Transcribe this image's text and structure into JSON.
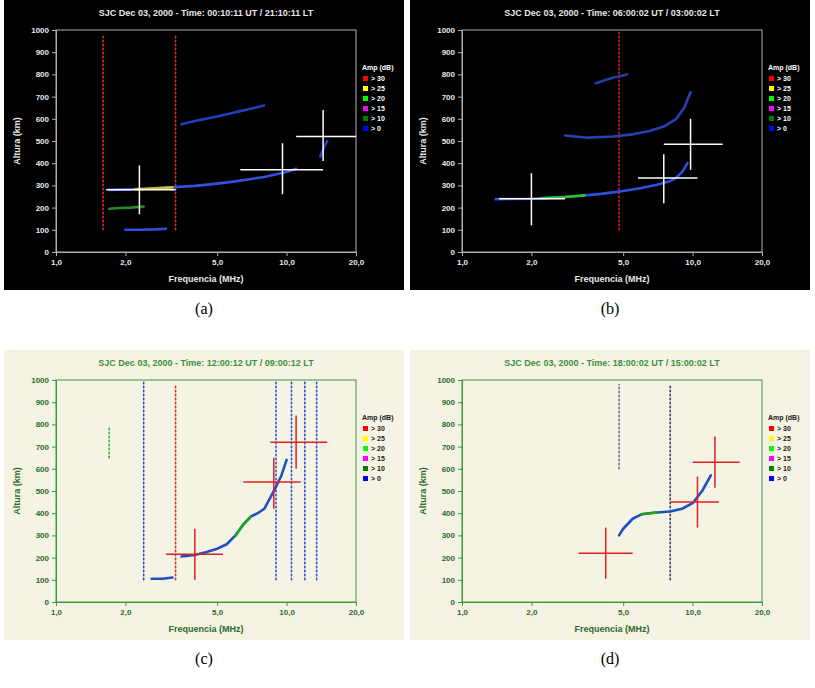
{
  "chart_data": [
    {
      "type": "line",
      "caption": "(a)",
      "title": "SJC Dec 03, 2000 - Time: 00:10:11 UT / 21:10:11 LT",
      "x_label": "Frequencia (MHz)",
      "y_label": "Altura (km)",
      "log": "x",
      "xlim": [
        1,
        20
      ],
      "ylim": [
        0,
        1000
      ],
      "xticks": [
        {
          "value": 1,
          "label": "1,0"
        },
        {
          "value": 2,
          "label": "2,0"
        },
        {
          "value": 5,
          "label": "5,0"
        },
        {
          "value": 10,
          "label": "10,0"
        },
        {
          "value": 20,
          "label": "20,0"
        }
      ],
      "yticks": [
        0,
        100,
        200,
        300,
        400,
        500,
        600,
        700,
        800,
        900,
        1000
      ],
      "amplitude_scale": {
        "title": "Amp (dB)",
        "labels": [
          "> 30",
          "> 25",
          "> 20",
          "> 15",
          "> 10",
          "> 0"
        ],
        "colors": [
          "#ff0000",
          "#ffff00",
          "#00ff00",
          "#ff00ff",
          "#008000",
          "#0000ff"
        ]
      },
      "series": [
        {
          "type": "line",
          "line_style": "dotted",
          "color": "#e03020",
          "x": [
            1.6,
            1.6
          ],
          "values": [
            100,
            980
          ]
        },
        {
          "type": "line",
          "line_style": "dotted",
          "color": "#e03020",
          "x": [
            3.3,
            3.3
          ],
          "values": [
            100,
            980
          ]
        },
        {
          "type": "line",
          "line_style": "solid",
          "color": "#3050e0",
          "x": [
            2.0,
            2.3,
            2.7,
            3.0
          ],
          "values": [
            100,
            100,
            102,
            105
          ]
        },
        {
          "type": "line",
          "line_style": "solid",
          "color": "#2a8a2a",
          "x": [
            1.7,
            1.9,
            2.1,
            2.4
          ],
          "values": [
            195,
            198,
            200,
            205
          ]
        },
        {
          "type": "line",
          "line_style": "solid",
          "color": "#3050e0",
          "x": [
            1.7,
            2.0,
            2.5,
            3.0,
            4.0,
            5.0,
            6.0,
            8.0,
            10.0,
            11.0
          ],
          "values": [
            280,
            282,
            285,
            290,
            298,
            308,
            318,
            338,
            360,
            375
          ]
        },
        {
          "type": "line",
          "line_style": "solid",
          "color": "#d4c020",
          "x": [
            2.2,
            2.6,
            3.2
          ],
          "values": [
            283,
            286,
            291
          ]
        },
        {
          "type": "line",
          "line_style": "solid",
          "color": "#2040c0",
          "x": [
            3.5,
            4.0,
            5.0,
            6.0,
            7.0,
            8.0
          ],
          "values": [
            575,
            590,
            610,
            630,
            645,
            660
          ]
        },
        {
          "type": "line",
          "line_style": "solid",
          "color": "#2040c0",
          "x": [
            14.0,
            14.5,
            15.0
          ],
          "values": [
            430,
            470,
            500
          ]
        }
      ],
      "crosses": {
        "color": "#ffffff",
        "x": [
          2.3,
          9.6,
          14.4
        ],
        "y": [
          280,
          370,
          520
        ],
        "x_low": [
          1.65,
          6.3,
          11.0
        ],
        "x_high": [
          3.3,
          14.4,
          20.0
        ],
        "y_low": [
          170,
          260,
          410
        ],
        "y_high": [
          390,
          490,
          640
        ]
      }
    },
    {
      "type": "line",
      "caption": "(b)",
      "title": "SJC Dec 03, 2000 - Time: 06:00:02 UT / 03:00:02 LT",
      "x_label": "Frequencia (MHz)",
      "y_label": "Altura (km)",
      "log": "x",
      "xlim": [
        1,
        20
      ],
      "ylim": [
        0,
        1000
      ],
      "xticks": [
        {
          "value": 1,
          "label": "1,0"
        },
        {
          "value": 2,
          "label": "2,0"
        },
        {
          "value": 5,
          "label": "5,0"
        },
        {
          "value": 10,
          "label": "10,0"
        },
        {
          "value": 20,
          "label": "20,0"
        }
      ],
      "yticks": [
        0,
        100,
        200,
        300,
        400,
        500,
        600,
        700,
        800,
        900,
        1000
      ],
      "amplitude_scale": {
        "title": "Amp (dB)",
        "labels": [
          "> 30",
          "> 25",
          "> 20",
          "> 15",
          "> 10",
          "> 0"
        ],
        "colors": [
          "#ff0000",
          "#ffff00",
          "#00ff00",
          "#ff00ff",
          "#008000",
          "#0000ff"
        ]
      },
      "series": [
        {
          "type": "line",
          "line_style": "dotted",
          "color": "#e02020",
          "x": [
            4.8,
            4.8
          ],
          "values": [
            100,
            990
          ]
        },
        {
          "type": "line",
          "line_style": "solid",
          "color": "#3050e0",
          "x": [
            1.4,
            2.0,
            3.0,
            4.0,
            5.0,
            6.0,
            7.0,
            8.0,
            8.5,
            9.0,
            9.5
          ],
          "values": [
            238,
            240,
            250,
            262,
            275,
            288,
            303,
            320,
            335,
            360,
            400
          ]
        },
        {
          "type": "line",
          "line_style": "solid",
          "color": "#30c030",
          "x": [
            2.2,
            2.8,
            3.4
          ],
          "values": [
            242,
            248,
            255
          ]
        },
        {
          "type": "line",
          "line_style": "solid",
          "color": "#2a40b0",
          "x": [
            2.8,
            3.5,
            4.5,
            5.5,
            6.5,
            7.5,
            8.5,
            9.2,
            9.8
          ],
          "values": [
            525,
            515,
            520,
            530,
            545,
            565,
            600,
            650,
            720
          ]
        },
        {
          "type": "line",
          "line_style": "solid",
          "color": "#2040a0",
          "x": [
            3.8,
            4.5,
            5.2
          ],
          "values": [
            760,
            785,
            800
          ]
        }
      ],
      "crosses": {
        "color": "#ffffff",
        "x": [
          2.0,
          7.5,
          9.8
        ],
        "y": [
          240,
          333,
          485
        ],
        "x_low": [
          1.45,
          5.8,
          7.5
        ],
        "x_high": [
          2.8,
          10.5,
          13.5
        ],
        "y_low": [
          120,
          220,
          370
        ],
        "y_high": [
          355,
          440,
          600
        ]
      }
    },
    {
      "type": "line",
      "caption": "(c)",
      "title": "SJC Dec 03, 2000 - Time: 12:00:12 UT / 09:00:12 LT",
      "x_label": "Frequencia (MHz)",
      "y_label": "Altura (km)",
      "log": "x",
      "xlim": [
        1,
        20
      ],
      "ylim": [
        0,
        1000
      ],
      "xticks": [
        {
          "value": 1,
          "label": "1,0"
        },
        {
          "value": 2,
          "label": "2,0"
        },
        {
          "value": 5,
          "label": "5,0"
        },
        {
          "value": 10,
          "label": "10,0"
        },
        {
          "value": 20,
          "label": "20,0"
        }
      ],
      "yticks": [
        0,
        100,
        200,
        300,
        400,
        500,
        600,
        700,
        800,
        900,
        1000
      ],
      "amplitude_scale": {
        "title": "Amp (dB)",
        "labels": [
          "> 30",
          "> 25",
          "> 20",
          "> 15",
          "> 10",
          "> 0"
        ],
        "colors": [
          "#ff0000",
          "#ffff00",
          "#00ff00",
          "#ff00ff",
          "#008000",
          "#0000ff"
        ]
      },
      "series": [
        {
          "type": "line",
          "line_style": "dotted",
          "color": "#20c020",
          "x": [
            1.7,
            1.7
          ],
          "values": [
            650,
            790
          ]
        },
        {
          "type": "line",
          "line_style": "dotted",
          "color": "#3040c0",
          "x": [
            2.4,
            2.4
          ],
          "values": [
            100,
            1000
          ]
        },
        {
          "type": "line",
          "line_style": "dotted",
          "color": "#d03020",
          "x": [
            3.3,
            3.3
          ],
          "values": [
            100,
            980
          ]
        },
        {
          "type": "line",
          "line_style": "dotted",
          "color": "#3050d0",
          "x": [
            9.0,
            9.0
          ],
          "values": [
            100,
            1000
          ]
        },
        {
          "type": "line",
          "line_style": "dotted",
          "color": "#3050d0",
          "x": [
            10.5,
            10.5
          ],
          "values": [
            100,
            1000
          ]
        },
        {
          "type": "line",
          "line_style": "dotted",
          "color": "#3050d0",
          "x": [
            12.0,
            12.0
          ],
          "values": [
            100,
            1000
          ]
        },
        {
          "type": "line",
          "line_style": "dotted",
          "color": "#3050d0",
          "x": [
            13.5,
            13.5
          ],
          "values": [
            100,
            1000
          ]
        },
        {
          "type": "line",
          "line_style": "solid",
          "color": "#2050c0",
          "x": [
            2.6,
            2.9,
            3.2
          ],
          "values": [
            105,
            105,
            110
          ]
        },
        {
          "type": "line",
          "line_style": "solid",
          "color": "#2050c0",
          "x": [
            3.5,
            4.0,
            4.5,
            5.0,
            5.5,
            6.0,
            6.5,
            7.0,
            7.5,
            8.0,
            8.5,
            9.0,
            9.5,
            10.0
          ],
          "values": [
            205,
            212,
            225,
            240,
            260,
            300,
            350,
            385,
            400,
            420,
            470,
            520,
            570,
            640
          ]
        },
        {
          "type": "line",
          "line_style": "solid",
          "color": "#20a020",
          "x": [
            6.0,
            6.5,
            7.0
          ],
          "values": [
            300,
            350,
            385
          ]
        }
      ],
      "crosses": {
        "color": "#e02020",
        "x": [
          4.0,
          8.8,
          11.0
        ],
        "y": [
          215,
          540,
          720
        ],
        "x_low": [
          3.0,
          6.5,
          8.5
        ],
        "x_high": [
          5.3,
          11.5,
          15.0
        ],
        "y_low": [
          100,
          420,
          600
        ],
        "y_high": [
          330,
          650,
          840
        ]
      }
    },
    {
      "type": "line",
      "caption": "(d)",
      "title": "SJC Dec 03, 2000 - Time: 18:00:02 UT / 15:00:02 LT",
      "x_label": "Frequencia (MHz)",
      "y_label": "Altura (km)",
      "log": "x",
      "xlim": [
        1,
        20
      ],
      "ylim": [
        0,
        1000
      ],
      "xticks": [
        {
          "value": 1,
          "label": "1,0"
        },
        {
          "value": 2,
          "label": "2,0"
        },
        {
          "value": 5,
          "label": "5,0"
        },
        {
          "value": 10,
          "label": "10,0"
        },
        {
          "value": 20,
          "label": "20,0"
        }
      ],
      "yticks": [
        0,
        100,
        200,
        300,
        400,
        500,
        600,
        700,
        800,
        900,
        1000
      ],
      "amplitude_scale": {
        "title": "Amp (dB)",
        "labels": [
          "> 30",
          "> 25",
          "> 20",
          "> 15",
          "> 10",
          "> 0"
        ],
        "colors": [
          "#ff0000",
          "#ffff00",
          "#00ff00",
          "#ff00ff",
          "#008000",
          "#0000ff"
        ]
      },
      "series": [
        {
          "type": "line",
          "line_style": "dotted",
          "color": "#304070",
          "x": [
            8.0,
            8.0
          ],
          "values": [
            100,
            980
          ]
        },
        {
          "type": "line",
          "line_style": "dotted",
          "color": "#6070a0",
          "x": [
            4.8,
            4.8
          ],
          "values": [
            600,
            980
          ]
        },
        {
          "type": "line",
          "line_style": "solid",
          "color": "#2050c0",
          "x": [
            4.8,
            5.0,
            5.5,
            6.0,
            6.5,
            7.0,
            8.0,
            9.0,
            10.0,
            11.0,
            12.0
          ],
          "values": [
            300,
            330,
            375,
            395,
            400,
            403,
            408,
            420,
            445,
            500,
            570
          ]
        },
        {
          "type": "line",
          "line_style": "solid",
          "color": "#20a020",
          "x": [
            6.0,
            6.5,
            7.0
          ],
          "values": [
            395,
            400,
            403
          ]
        }
      ],
      "crosses": {
        "color": "#e02020",
        "x": [
          4.2,
          10.5,
          12.5
        ],
        "y": [
          220,
          450,
          630
        ],
        "x_low": [
          3.2,
          8.0,
          10.0
        ],
        "x_high": [
          5.5,
          13.0,
          16.0
        ],
        "y_low": [
          105,
          335,
          515
        ],
        "y_high": [
          335,
          565,
          745
        ]
      }
    }
  ]
}
